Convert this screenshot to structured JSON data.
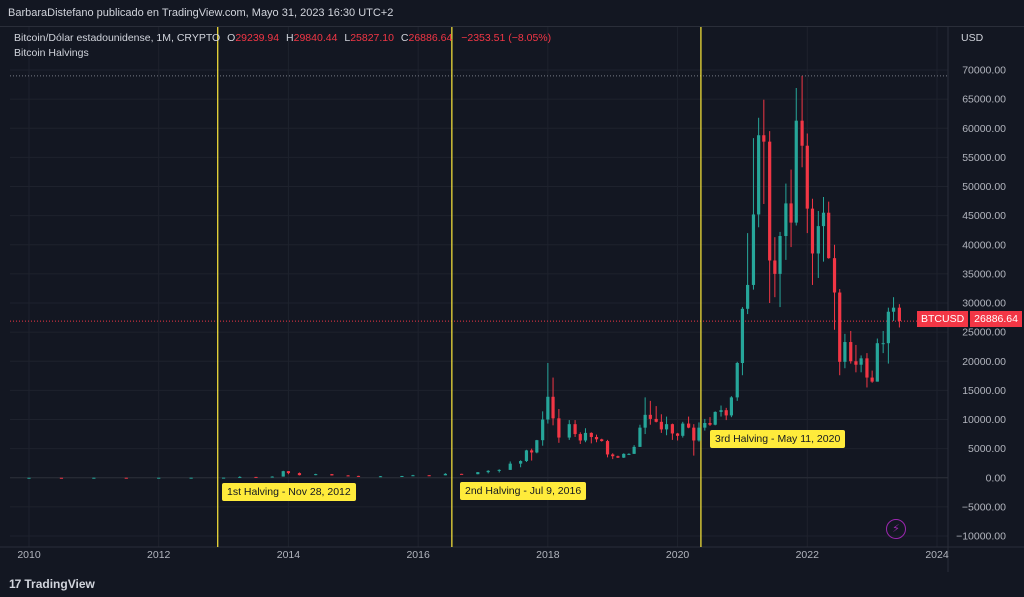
{
  "header": {
    "publisher": "BarbaraDistefano publicado en TradingView.com, Mayo 31, 2023 16:30 UTC+2"
  },
  "legend": {
    "symbol": "Bitcoin/Dólar estadounidense, 1M, CRYPTO",
    "open_label": "O",
    "open": "29239.94",
    "high_label": "H",
    "high": "29840.44",
    "low_label": "L",
    "low": "25827.10",
    "close_label": "C",
    "close": "26886.64",
    "change": "−2353.51 (−8.05%)",
    "indicator": "Bitcoin Halvings"
  },
  "currency": "USD",
  "price_tag": {
    "symbol": "BTCUSD",
    "value": "26886.64"
  },
  "footer": {
    "brand": "TradingView",
    "icon": "tradingview-logo-icon"
  },
  "icons": {
    "bolt": "lightning-bolt-icon"
  },
  "colors": {
    "up": "#26a69a",
    "down": "#f23645",
    "halving": "#ffeb3b",
    "background": "#131722"
  },
  "chart_data": {
    "type": "candlestick",
    "interval": "1M",
    "x_ticks": [
      "2010",
      "2012",
      "2014",
      "2016",
      "2018",
      "2020",
      "2022",
      "2024"
    ],
    "y_ticks": [
      "70000.00",
      "65000.00",
      "60000.00",
      "55000.00",
      "50000.00",
      "45000.00",
      "40000.00",
      "35000.00",
      "30000.00",
      "25000.00",
      "20000.00",
      "15000.00",
      "10000.00",
      "5000.00",
      "0.00",
      "−5000.00",
      "−10000.00"
    ],
    "ylim": [
      -10000,
      70000
    ],
    "xlim": [
      2009.7,
      2024.1
    ],
    "last_price": 26886.64,
    "all_time_high": 69000,
    "halvings": [
      {
        "label": "1st Halving - Nov 28, 2012",
        "date": 2012.91
      },
      {
        "label": "2nd Halving - Jul 9, 2016",
        "date": 2016.52
      },
      {
        "label": "3rd Halving - May 11, 2020",
        "date": 2020.36
      }
    ],
    "candles": [
      {
        "t": 2010.0,
        "o": 0,
        "h": 1,
        "l": 0,
        "c": 0.4
      },
      {
        "t": 2010.5,
        "o": 0.4,
        "h": 1,
        "l": 0,
        "c": 0.3
      },
      {
        "t": 2011.0,
        "o": 0.3,
        "h": 30,
        "l": 0,
        "c": 5
      },
      {
        "t": 2011.5,
        "o": 5,
        "h": 15,
        "l": 2,
        "c": 4
      },
      {
        "t": 2012.0,
        "o": 4,
        "h": 7,
        "l": 4,
        "c": 5
      },
      {
        "t": 2012.5,
        "o": 5,
        "h": 15,
        "l": 5,
        "c": 13
      },
      {
        "t": 2013.0,
        "o": 13,
        "h": 30,
        "l": 13,
        "c": 20
      },
      {
        "t": 2013.25,
        "o": 20,
        "h": 260,
        "l": 20,
        "c": 140
      },
      {
        "t": 2013.5,
        "o": 140,
        "h": 140,
        "l": 65,
        "c": 100
      },
      {
        "t": 2013.75,
        "o": 100,
        "h": 250,
        "l": 90,
        "c": 200
      },
      {
        "t": 2013.92,
        "o": 200,
        "h": 1200,
        "l": 200,
        "c": 1130
      },
      {
        "t": 2014.0,
        "o": 1130,
        "h": 1160,
        "l": 600,
        "c": 800
      },
      {
        "t": 2014.17,
        "o": 800,
        "h": 900,
        "l": 400,
        "c": 450
      },
      {
        "t": 2014.42,
        "o": 450,
        "h": 680,
        "l": 440,
        "c": 620
      },
      {
        "t": 2014.67,
        "o": 620,
        "h": 650,
        "l": 380,
        "c": 400
      },
      {
        "t": 2014.92,
        "o": 400,
        "h": 450,
        "l": 300,
        "c": 320
      },
      {
        "t": 2015.08,
        "o": 320,
        "h": 330,
        "l": 160,
        "c": 220
      },
      {
        "t": 2015.42,
        "o": 220,
        "h": 300,
        "l": 200,
        "c": 260
      },
      {
        "t": 2015.75,
        "o": 260,
        "h": 320,
        "l": 220,
        "c": 300
      },
      {
        "t": 2015.92,
        "o": 300,
        "h": 500,
        "l": 300,
        "c": 430
      },
      {
        "t": 2016.17,
        "o": 430,
        "h": 450,
        "l": 360,
        "c": 420
      },
      {
        "t": 2016.42,
        "o": 420,
        "h": 780,
        "l": 420,
        "c": 670
      },
      {
        "t": 2016.67,
        "o": 670,
        "h": 680,
        "l": 560,
        "c": 610
      },
      {
        "t": 2016.92,
        "o": 610,
        "h": 980,
        "l": 600,
        "c": 960
      },
      {
        "t": 2017.08,
        "o": 960,
        "h": 1300,
        "l": 750,
        "c": 1190
      },
      {
        "t": 2017.25,
        "o": 1190,
        "h": 1450,
        "l": 900,
        "c": 1350
      },
      {
        "t": 2017.42,
        "o": 1350,
        "h": 2800,
        "l": 1350,
        "c": 2420
      },
      {
        "t": 2017.58,
        "o": 2420,
        "h": 3000,
        "l": 1800,
        "c": 2870
      },
      {
        "t": 2017.67,
        "o": 2870,
        "h": 4800,
        "l": 2700,
        "c": 4700
      },
      {
        "t": 2017.75,
        "o": 4700,
        "h": 5000,
        "l": 2950,
        "c": 4340
      },
      {
        "t": 2017.83,
        "o": 4340,
        "h": 6500,
        "l": 4200,
        "c": 6450
      },
      {
        "t": 2017.92,
        "o": 6450,
        "h": 11400,
        "l": 5500,
        "c": 10000
      },
      {
        "t": 2018.0,
        "o": 10000,
        "h": 19700,
        "l": 9300,
        "c": 13900
      },
      {
        "t": 2018.08,
        "o": 13900,
        "h": 17200,
        "l": 9000,
        "c": 10200
      },
      {
        "t": 2018.17,
        "o": 10200,
        "h": 11800,
        "l": 6000,
        "c": 6900
      },
      {
        "t": 2018.33,
        "o": 6900,
        "h": 9900,
        "l": 6500,
        "c": 9200
      },
      {
        "t": 2018.42,
        "o": 9200,
        "h": 9900,
        "l": 7000,
        "c": 7500
      },
      {
        "t": 2018.5,
        "o": 7500,
        "h": 7800,
        "l": 5800,
        "c": 6400
      },
      {
        "t": 2018.58,
        "o": 6400,
        "h": 8500,
        "l": 6100,
        "c": 7700
      },
      {
        "t": 2018.67,
        "o": 7700,
        "h": 7800,
        "l": 5900,
        "c": 7000
      },
      {
        "t": 2018.75,
        "o": 7000,
        "h": 7400,
        "l": 6100,
        "c": 6600
      },
      {
        "t": 2018.83,
        "o": 6600,
        "h": 6700,
        "l": 6200,
        "c": 6300
      },
      {
        "t": 2018.92,
        "o": 6300,
        "h": 6500,
        "l": 3500,
        "c": 4000
      },
      {
        "t": 2019.0,
        "o": 4000,
        "h": 4200,
        "l": 3200,
        "c": 3700
      },
      {
        "t": 2019.08,
        "o": 3700,
        "h": 3800,
        "l": 3400,
        "c": 3450
      },
      {
        "t": 2019.17,
        "o": 3450,
        "h": 4200,
        "l": 3400,
        "c": 4100
      },
      {
        "t": 2019.25,
        "o": 4100,
        "h": 4200,
        "l": 3900,
        "c": 4100
      },
      {
        "t": 2019.33,
        "o": 4100,
        "h": 5600,
        "l": 4100,
        "c": 5300
      },
      {
        "t": 2019.42,
        "o": 5300,
        "h": 9100,
        "l": 5300,
        "c": 8600
      },
      {
        "t": 2019.5,
        "o": 8600,
        "h": 13800,
        "l": 7500,
        "c": 10800
      },
      {
        "t": 2019.58,
        "o": 10800,
        "h": 13200,
        "l": 9100,
        "c": 10100
      },
      {
        "t": 2019.67,
        "o": 10100,
        "h": 12300,
        "l": 9500,
        "c": 9600
      },
      {
        "t": 2019.75,
        "o": 9600,
        "h": 10900,
        "l": 7700,
        "c": 8300
      },
      {
        "t": 2019.83,
        "o": 8300,
        "h": 10500,
        "l": 7300,
        "c": 9200
      },
      {
        "t": 2019.92,
        "o": 9200,
        "h": 9300,
        "l": 6500,
        "c": 7600
      },
      {
        "t": 2020.0,
        "o": 7600,
        "h": 7700,
        "l": 6400,
        "c": 7200
      },
      {
        "t": 2020.08,
        "o": 7200,
        "h": 9600,
        "l": 6900,
        "c": 9300
      },
      {
        "t": 2020.17,
        "o": 9300,
        "h": 10500,
        "l": 8500,
        "c": 8600
      },
      {
        "t": 2020.25,
        "o": 8600,
        "h": 9200,
        "l": 3800,
        "c": 6400
      },
      {
        "t": 2020.33,
        "o": 6400,
        "h": 9500,
        "l": 6200,
        "c": 8600
      },
      {
        "t": 2020.42,
        "o": 8600,
        "h": 10100,
        "l": 8100,
        "c": 9400
      },
      {
        "t": 2020.5,
        "o": 9400,
        "h": 10400,
        "l": 8900,
        "c": 9100
      },
      {
        "t": 2020.58,
        "o": 9100,
        "h": 11400,
        "l": 9000,
        "c": 11300
      },
      {
        "t": 2020.67,
        "o": 11300,
        "h": 12400,
        "l": 10500,
        "c": 11600
      },
      {
        "t": 2020.75,
        "o": 11600,
        "h": 12000,
        "l": 9900,
        "c": 10700
      },
      {
        "t": 2020.83,
        "o": 10700,
        "h": 14000,
        "l": 10400,
        "c": 13800
      },
      {
        "t": 2020.92,
        "o": 13800,
        "h": 19900,
        "l": 13200,
        "c": 19700
      },
      {
        "t": 2021.0,
        "o": 19700,
        "h": 29300,
        "l": 17600,
        "c": 29000
      },
      {
        "t": 2021.08,
        "o": 29000,
        "h": 42000,
        "l": 28100,
        "c": 33100
      },
      {
        "t": 2021.17,
        "o": 33100,
        "h": 58300,
        "l": 32300,
        "c": 45200
      },
      {
        "t": 2021.25,
        "o": 45200,
        "h": 61800,
        "l": 43000,
        "c": 58800
      },
      {
        "t": 2021.33,
        "o": 58800,
        "h": 64900,
        "l": 47000,
        "c": 57700
      },
      {
        "t": 2021.42,
        "o": 57700,
        "h": 59500,
        "l": 30000,
        "c": 37300
      },
      {
        "t": 2021.5,
        "o": 37300,
        "h": 41300,
        "l": 31000,
        "c": 35000
      },
      {
        "t": 2021.58,
        "o": 35000,
        "h": 42200,
        "l": 29300,
        "c": 41500
      },
      {
        "t": 2021.67,
        "o": 41500,
        "h": 50500,
        "l": 37400,
        "c": 47100
      },
      {
        "t": 2021.75,
        "o": 47100,
        "h": 52900,
        "l": 39600,
        "c": 43800
      },
      {
        "t": 2021.83,
        "o": 43800,
        "h": 66900,
        "l": 43300,
        "c": 61300
      },
      {
        "t": 2021.92,
        "o": 61300,
        "h": 69000,
        "l": 53300,
        "c": 57000
      },
      {
        "t": 2022.0,
        "o": 57000,
        "h": 59100,
        "l": 42000,
        "c": 46200
      },
      {
        "t": 2022.08,
        "o": 46200,
        "h": 47900,
        "l": 33100,
        "c": 38500
      },
      {
        "t": 2022.17,
        "o": 38500,
        "h": 45800,
        "l": 34300,
        "c": 43200
      },
      {
        "t": 2022.25,
        "o": 43200,
        "h": 48200,
        "l": 37100,
        "c": 45500
      },
      {
        "t": 2022.33,
        "o": 45500,
        "h": 47400,
        "l": 37600,
        "c": 37700
      },
      {
        "t": 2022.42,
        "o": 37700,
        "h": 40000,
        "l": 25400,
        "c": 31800
      },
      {
        "t": 2022.5,
        "o": 31800,
        "h": 32400,
        "l": 17600,
        "c": 19900
      },
      {
        "t": 2022.58,
        "o": 19900,
        "h": 24700,
        "l": 18800,
        "c": 23300
      },
      {
        "t": 2022.67,
        "o": 23300,
        "h": 25200,
        "l": 19600,
        "c": 20000
      },
      {
        "t": 2022.75,
        "o": 20000,
        "h": 22800,
        "l": 18100,
        "c": 19400
      },
      {
        "t": 2022.83,
        "o": 19400,
        "h": 21000,
        "l": 18100,
        "c": 20500
      },
      {
        "t": 2022.92,
        "o": 20500,
        "h": 21400,
        "l": 15500,
        "c": 17200
      },
      {
        "t": 2023.0,
        "o": 17200,
        "h": 18400,
        "l": 16300,
        "c": 16500
      },
      {
        "t": 2023.08,
        "o": 16500,
        "h": 23900,
        "l": 16500,
        "c": 23100
      },
      {
        "t": 2023.17,
        "o": 23100,
        "h": 25200,
        "l": 21400,
        "c": 23100
      },
      {
        "t": 2023.25,
        "o": 23100,
        "h": 29200,
        "l": 19600,
        "c": 28500
      },
      {
        "t": 2023.33,
        "o": 28500,
        "h": 31000,
        "l": 26900,
        "c": 29200
      },
      {
        "t": 2023.42,
        "o": 29200,
        "h": 29800,
        "l": 25800,
        "c": 26900
      }
    ]
  }
}
